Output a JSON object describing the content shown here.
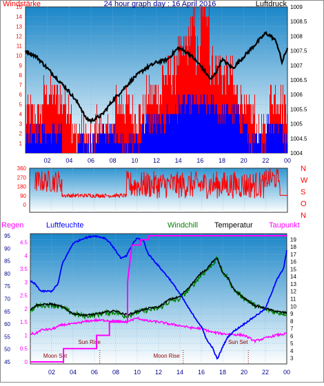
{
  "colors": {
    "red": "#ff0000",
    "blue": "#0000ff",
    "navy": "#00008b",
    "black": "#000000",
    "magenta": "#ff00ff",
    "green": "#008000",
    "bg_top": "#1a86c8",
    "bg_bottom": "#ffffff"
  },
  "hour_ticks": [
    "02",
    "04",
    "06",
    "08",
    "10",
    "12",
    "14",
    "16",
    "18",
    "20",
    "22",
    "00"
  ],
  "chart_data": [
    {
      "type": "line",
      "title": "24 hour graph day : 16 April 2016",
      "left_label": "Windstärke",
      "right_label": "Luftdruck",
      "x_range": [
        0,
        24
      ],
      "y_left_range": [
        0,
        15
      ],
      "y_right_range": [
        1004,
        1009
      ],
      "y_left_ticks": [
        "1",
        "2",
        "3",
        "4",
        "5",
        "6",
        "7",
        "8",
        "9",
        "10",
        "11",
        "12",
        "13",
        "14",
        "15"
      ],
      "y_right_ticks": [
        "1004",
        "1004.5",
        "1005",
        "1005.5",
        "1006",
        "1006.5",
        "1007",
        "1007.5",
        "1008",
        "1008.5",
        "1009"
      ],
      "pressure": {
        "x": [
          0,
          1,
          2,
          3,
          4,
          5,
          5.5,
          6,
          7,
          8,
          9,
          10,
          11,
          12,
          13,
          14,
          15,
          16,
          17,
          17.5,
          18,
          19,
          20,
          21,
          22,
          22.5,
          23,
          23.5,
          24
        ],
        "y": [
          1007.5,
          1007.3,
          1006.9,
          1006.5,
          1006.1,
          1005.6,
          1005.2,
          1005.1,
          1005.3,
          1005.8,
          1006.2,
          1006.6,
          1006.9,
          1007.1,
          1007.2,
          1007.6,
          1007.4,
          1007.0,
          1006.5,
          1006.8,
          1007.2,
          1006.9,
          1007.3,
          1007.7,
          1008.1,
          1008.0,
          1007.8,
          1007.1,
          1007.6
        ]
      },
      "wind_blue_steps": {
        "x": [
          0,
          3.3,
          4.8,
          6.5,
          8.5,
          10.6,
          12.8,
          14,
          16,
          17.5,
          19.5,
          20.3,
          22,
          23.5,
          24
        ],
        "y": [
          2,
          0,
          1,
          2,
          1,
          3,
          4,
          5,
          5,
          4,
          3,
          1,
          3,
          1,
          0
        ]
      },
      "wind_red_steps": {
        "x": [
          0,
          1.5,
          3.2,
          4.2,
          5.5,
          6.3,
          7,
          8.2,
          9.6,
          11,
          12.5,
          13.8,
          14.5,
          15,
          15.6,
          16,
          16.8,
          18,
          19,
          20,
          21,
          22.3,
          23.4,
          24
        ],
        "y": [
          4,
          6,
          5,
          2,
          1,
          3,
          2,
          5,
          4,
          6,
          8,
          10,
          11,
          13,
          10,
          15,
          9,
          8,
          6,
          4,
          2,
          6,
          5,
          0
        ]
      }
    },
    {
      "type": "line",
      "direction_labels": [
        "N",
        "W",
        "S",
        "O",
        "N"
      ],
      "y_range": [
        0,
        360
      ],
      "y_ticks": [
        "0",
        "90",
        "180",
        "270",
        "360"
      ],
      "segments": [
        {
          "x0": 0.5,
          "x1": 3.0,
          "lo": 120,
          "hi": 340
        },
        {
          "x0": 3.0,
          "x1": 9.0,
          "lo": 70,
          "hi": 110
        },
        {
          "x0": 9.0,
          "x1": 22.0,
          "lo": 60,
          "hi": 330
        },
        {
          "x0": 22.0,
          "x1": 23.3,
          "lo": 150,
          "hi": 360
        },
        {
          "x0": 23.3,
          "x1": 24.0,
          "lo": 90,
          "hi": 95
        }
      ]
    },
    {
      "type": "line",
      "labels": {
        "regen": "Regen",
        "luftfeuchte": "Luftfeuchte",
        "windchill": "Windchill",
        "temperatur": "Temperatur",
        "taupunkt": "Taupunkt"
      },
      "x_range": [
        0,
        24
      ],
      "humidity_axis": {
        "range": [
          45,
          95
        ],
        "ticks": [
          "45",
          "50",
          "55",
          "60",
          "65",
          "70",
          "75",
          "80",
          "85",
          "90",
          "95"
        ]
      },
      "rain_axis": {
        "range": [
          0,
          4.75
        ],
        "ticks": [
          "0",
          "0.5",
          "1",
          "1.5",
          "2",
          "2.5",
          "3",
          "3.5",
          "4",
          "4.5"
        ]
      },
      "temp_axis": {
        "range": [
          2.5,
          19.5
        ],
        "ticks": [
          "3",
          "4",
          "5",
          "6",
          "7",
          "8",
          "9",
          "10",
          "11",
          "12",
          "13",
          "14",
          "15",
          "16",
          "17",
          "18",
          "19"
        ]
      },
      "humidity": {
        "x": [
          0,
          0.4,
          1,
          2,
          2.6,
          3,
          4,
          5,
          6,
          7,
          7.5,
          8,
          8.5,
          9,
          9.6,
          10,
          10.6,
          11,
          12,
          13,
          14,
          15,
          16,
          16.6,
          17,
          17.5,
          18,
          18.5,
          19,
          20,
          21,
          22,
          23,
          23.7,
          24
        ],
        "y": [
          77,
          76,
          73,
          73,
          76,
          84,
          92,
          94,
          95,
          94,
          92,
          89,
          86,
          87,
          92,
          94,
          93,
          88,
          83,
          78,
          72,
          65,
          59,
          53,
          51,
          46,
          51,
          55,
          57,
          60,
          63,
          66,
          77,
          82,
          89
        ]
      },
      "temperature": {
        "x": [
          0,
          0.5,
          1,
          2,
          3,
          4,
          5,
          6,
          7,
          8,
          8.8,
          9.5,
          10,
          11,
          12,
          13,
          13.5,
          14,
          15,
          16,
          16.5,
          17,
          17.5,
          18,
          18.5,
          19,
          20,
          21,
          22,
          23,
          24
        ],
        "y": [
          9.5,
          10.1,
          10.2,
          10.3,
          9.9,
          9.0,
          8.8,
          8.9,
          9.2,
          9.4,
          8.9,
          9.0,
          9.3,
          9.7,
          9.9,
          10.9,
          11.1,
          11.3,
          12.8,
          14.5,
          15.0,
          15.9,
          16.5,
          14.5,
          13.8,
          12.3,
          11.1,
          10.1,
          9.7,
          9.3,
          9.1
        ]
      },
      "windchill": {
        "x": [
          0,
          0.5,
          1,
          2,
          3,
          4,
          5,
          6,
          7,
          8,
          8.8,
          9.5,
          10,
          11,
          12,
          13,
          13.5,
          14,
          15,
          16,
          16.5,
          17,
          17.5,
          18,
          18.5,
          19,
          20,
          21,
          22,
          23,
          24
        ],
        "y": [
          9.3,
          10.0,
          10.1,
          10.2,
          9.8,
          9.0,
          8.7,
          8.8,
          9.1,
          9.2,
          8.7,
          8.9,
          9.2,
          9.5,
          9.7,
          10.6,
          10.8,
          11.0,
          12.5,
          14.2,
          14.8,
          15.6,
          16.4,
          14.5,
          13.8,
          12.3,
          11.1,
          10.1,
          9.6,
          9.2,
          9.0
        ]
      },
      "dewpoint": {
        "x": [
          0,
          0.5,
          1,
          2,
          3,
          4,
          5,
          6,
          7,
          8,
          9,
          10,
          11,
          12,
          13,
          14,
          15,
          16,
          17,
          18,
          19,
          20,
          21,
          22,
          23,
          24
        ],
        "y": [
          6.3,
          6.3,
          6.8,
          6.9,
          7.5,
          7.6,
          7.9,
          8.1,
          8.1,
          8.0,
          7.9,
          8.4,
          8.0,
          7.9,
          7.6,
          7.4,
          7.1,
          7.0,
          6.5,
          6.3,
          6.2,
          6.1,
          5.3,
          5.7,
          6.1,
          6.3
        ]
      },
      "rain": {
        "x": [
          0,
          3.1,
          3.1,
          6.2,
          6.2,
          7.4,
          7.4,
          9.1,
          9.1,
          9.5,
          10.3,
          10.3,
          11.1,
          11.1,
          24
        ],
        "y": [
          0,
          0,
          0.5,
          0.5,
          1.0,
          1.0,
          1.5,
          1.5,
          3.0,
          4.4,
          4.4,
          4.6,
          4.6,
          4.75,
          4.75
        ]
      },
      "annotations": [
        {
          "text": "Moon Set",
          "hour": 3.1
        },
        {
          "text": "Sun Rise",
          "hour": 6.5
        },
        {
          "text": "Moon Rise",
          "hour": 14.3
        },
        {
          "text": "Sun Set",
          "hour": 20.4
        }
      ]
    }
  ]
}
